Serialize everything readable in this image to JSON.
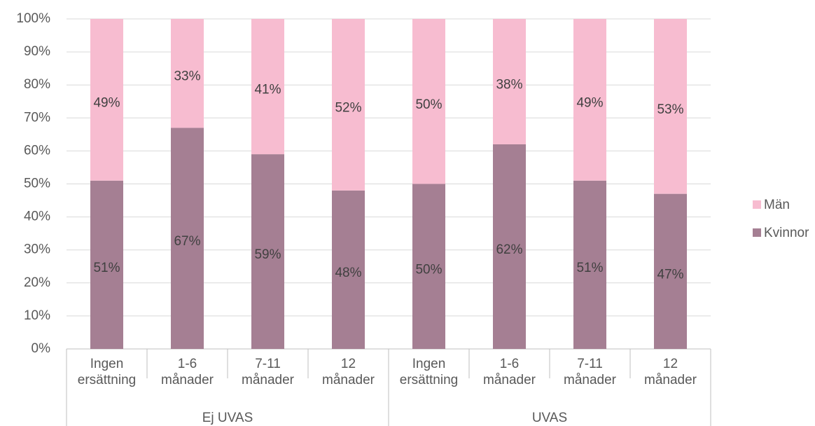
{
  "chart_data": {
    "type": "stacked_bar",
    "categories": [
      "Ingen ersättning",
      "1-6 månader",
      "7-11 månader",
      "12 månader",
      "Ingen ersättning",
      "1-6 månader",
      "7-11 månader",
      "12 månader"
    ],
    "groups": [
      "Ej UVAS",
      "UVAS"
    ],
    "series": [
      {
        "name": "Kvinnor",
        "color": "#a57f93",
        "values": [
          51,
          67,
          59,
          48,
          50,
          62,
          51,
          47
        ],
        "value_labels": [
          "51%",
          "67%",
          "59%",
          "48%",
          "50%",
          "62%",
          "51%",
          "47%"
        ]
      },
      {
        "name": "Män",
        "color": "#f7bcd0",
        "values": [
          49,
          33,
          41,
          52,
          50,
          38,
          49,
          53
        ],
        "value_labels": [
          "49%",
          "33%",
          "41%",
          "52%",
          "50%",
          "38%",
          "49%",
          "53%"
        ]
      }
    ],
    "ylim": [
      0,
      100
    ],
    "yticks": [
      {
        "value": 0,
        "label": "0%"
      },
      {
        "value": 10,
        "label": "10%"
      },
      {
        "value": 20,
        "label": "20%"
      },
      {
        "value": 30,
        "label": "30%"
      },
      {
        "value": 40,
        "label": "40%"
      },
      {
        "value": 50,
        "label": "50%"
      },
      {
        "value": 60,
        "label": "60%"
      },
      {
        "value": 70,
        "label": "70%"
      },
      {
        "value": 80,
        "label": "80%"
      },
      {
        "value": 90,
        "label": "90%"
      },
      {
        "value": 100,
        "label": "100%"
      }
    ],
    "grid": true,
    "legend": "right"
  }
}
